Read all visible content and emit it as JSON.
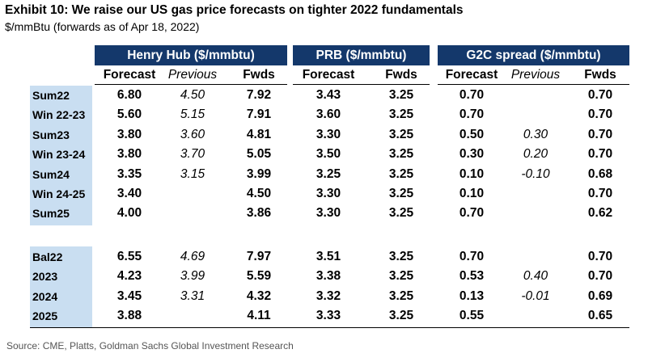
{
  "title": "Exhibit 10: We raise our US gas price forecasts on tighter 2022 fundamentals",
  "subtitle": "$/mmBtu (forwards as of Apr 18, 2022)",
  "groups": [
    "Henry Hub ($/mmbtu)",
    "PRB ($/mmbtu)",
    "G2C spread ($/mmbtu)"
  ],
  "columns": [
    "Forecast",
    "Previous",
    "Fwds",
    "Forecast",
    "Fwds",
    "Forecast",
    "Previous",
    "Fwds"
  ],
  "section1": [
    {
      "label": "Sum22",
      "values": [
        "6.80",
        "4.50",
        "7.92",
        "3.43",
        "3.25",
        "0.70",
        "",
        "0.70"
      ]
    },
    {
      "label": "Win 22-23",
      "values": [
        "5.60",
        "5.15",
        "7.91",
        "3.60",
        "3.25",
        "0.70",
        "",
        "0.70"
      ]
    },
    {
      "label": "Sum23",
      "values": [
        "3.80",
        "3.60",
        "4.81",
        "3.30",
        "3.25",
        "0.50",
        "0.30",
        "0.70"
      ]
    },
    {
      "label": "Win 23-24",
      "values": [
        "3.80",
        "3.70",
        "5.05",
        "3.50",
        "3.25",
        "0.30",
        "0.20",
        "0.70"
      ]
    },
    {
      "label": "Sum24",
      "values": [
        "3.35",
        "3.15",
        "3.99",
        "3.25",
        "3.25",
        "0.10",
        "-0.10",
        "0.68"
      ]
    },
    {
      "label": "Win 24-25",
      "values": [
        "3.40",
        "",
        "4.50",
        "3.30",
        "3.25",
        "0.10",
        "",
        "0.70"
      ]
    },
    {
      "label": "Sum25",
      "values": [
        "4.00",
        "",
        "3.86",
        "3.30",
        "3.25",
        "0.70",
        "",
        "0.62"
      ]
    }
  ],
  "section2": [
    {
      "label": "Bal22",
      "values": [
        "6.55",
        "4.69",
        "7.97",
        "3.51",
        "3.25",
        "0.70",
        "",
        "0.70"
      ]
    },
    {
      "label": "2023",
      "values": [
        "4.23",
        "3.99",
        "5.59",
        "3.38",
        "3.25",
        "0.53",
        "0.40",
        "0.70"
      ]
    },
    {
      "label": "2024",
      "values": [
        "3.45",
        "3.31",
        "4.32",
        "3.32",
        "3.25",
        "0.13",
        "-0.01",
        "0.69"
      ]
    },
    {
      "label": "2025",
      "values": [
        "3.88",
        "",
        "4.11",
        "3.33",
        "3.25",
        "0.55",
        "",
        "0.65"
      ]
    }
  ],
  "footer": "Source: CME, Platts, Goldman Sachs Global Investment Research"
}
